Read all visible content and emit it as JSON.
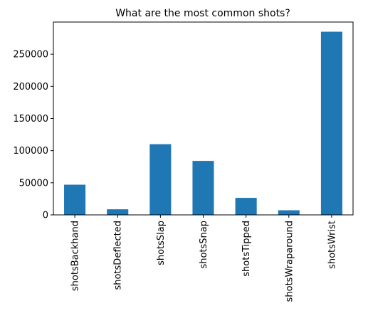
{
  "chart_data": {
    "type": "bar",
    "title": "What are the most common shots?",
    "xlabel": "",
    "ylabel": "",
    "categories": [
      "shotsBackhand",
      "shotsDeflected",
      "shotsSlap",
      "shotsSnap",
      "shotsTipped",
      "shotsWraparound",
      "shotsWrist"
    ],
    "values": [
      47000,
      8700,
      110000,
      84000,
      26500,
      7200,
      285000
    ],
    "ylim": [
      0,
      300000
    ],
    "yticks": [
      0,
      50000,
      100000,
      150000,
      200000,
      250000
    ],
    "ytick_labels": [
      "0",
      "50000",
      "100000",
      "150000",
      "200000",
      "250000"
    ],
    "bar_color": "#1f77b4",
    "grid": false,
    "legend": false
  }
}
